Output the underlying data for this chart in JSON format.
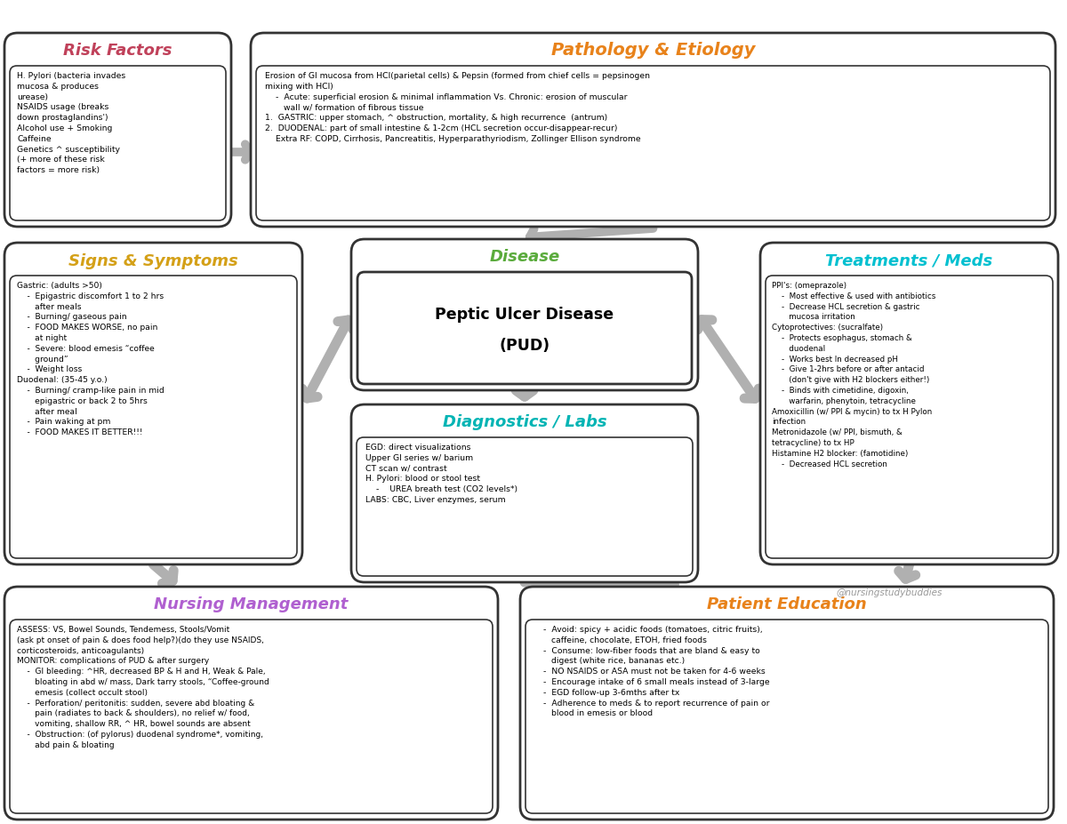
{
  "bg_color": "#ffffff",
  "title_colors": {
    "risk_factors": "#c0415a",
    "pathology": "#e8821a",
    "signs_symptoms": "#d4a017",
    "disease": "#5aab3c",
    "treatments": "#00c0d0",
    "diagnostics": "#00b4b4",
    "nursing": "#b060d0",
    "patient_ed": "#e8821a"
  },
  "risk_factors_title": "Risk Factors",
  "risk_factors_text": "H. Pylori (bacteria invades\nmucosa & produces\nurease)\nNSAIDS usage (breaks\ndown prostaglandins')\nAlcohol use + Smoking\nCaffeine\nGenetics ^ susceptibility\n(+ more of these risk\nfactors = more risk)",
  "pathology_title": "Pathology & Etiology",
  "pathology_text": "Erosion of GI mucosa from HCl(parietal cells) & Pepsin (formed from chief cells = pepsinogen\nmixing with HCl)\n    -  Acute: superficial erosion & minimal inflammation Vs. Chronic: erosion of muscular\n       wall w/ formation of fibrous tissue\n1.  GASTRIC: upper stomach, ^ obstruction, mortality, & high recurrence  (antrum)\n2.  DUODENAL: part of small intestine & 1-2cm (HCL secretion occur-disappear-recur)\n    Extra RF: COPD, Cirrhosis, Pancreatitis, Hyperparathyriodism, Zollinger Ellison syndrome",
  "signs_title": "Signs & Symptoms",
  "signs_text": "Gastric: (adults >50)\n    -  Epigastric discomfort 1 to 2 hrs\n       after meals\n    -  Burning/ gaseous pain\n    -  FOOD MAKES WORSE, no pain\n       at night\n    -  Severe: blood emesis “coffee\n       ground”\n    -  Weight loss\nDuodenal: (35-45 y.o.)\n    -  Burning/ cramp-like pain in mid\n       epigastric or back 2 to 5hrs\n       after meal\n    -  Pain waking at pm\n    -  FOOD MAKES IT BETTER!!!",
  "disease_title": "Disease",
  "disease_line1": "Peptic Ulcer Disease",
  "disease_line2": "(PUD)",
  "diagnostics_title": "Diagnostics / Labs",
  "diagnostics_text": "EGD: direct visualizations\nUpper GI series w/ barium\nCT scan w/ contrast\nH. Pylori: blood or stool test\n    -    UREA breath test (CO2 levels*)\nLABS: CBC, Liver enzymes, serum",
  "treatments_title": "Treatments / Meds",
  "treatments_text": "PPI's: (omeprazole)\n    -  Most effective & used with antibiotics\n    -  Decrease HCL secretion & gastric\n       mucosa irritation\nCytoprotectives: (sucralfate)\n    -  Protects esophagus, stomach &\n       duodenal\n    -  Works best In decreased pH\n    -  Give 1-2hrs before or after antacid\n       (don't give with H2 blockers either!)\n    -  Binds with cimetidine, digoxin,\n       warfarin, phenytoin, tetracycline\nAmoxicillin (w/ PPI & mycin) to tx H Pylon\ninfection\nMetronidazole (w/ PPI, bismuth, &\ntetracycline) to tx HP\nHistamine H2 blocker: (famotidine)\n    -  Decreased HCL secretion",
  "nursing_title": "Nursing Management",
  "nursing_text": "ASSESS: VS, Bowel Sounds, Tendemess, Stools/Vomit\n(ask pt onset of pain & does food help?)(do they use NSAIDS,\ncorticosteroids, anticoagulants)\nMONITOR: complications of PUD & after surgery\n    -  GI bleeding: ^HR, decreased BP & H and H, Weak & Pale,\n       bloating in abd w/ mass, Dark tarry stools, “Coffee-ground\n       emesis (collect occult stool)\n    -  Perforation/ peritonitis: sudden, severe abd bloating &\n       pain (radiates to back & shoulders), no relief w/ food,\n       vomiting, shallow RR, ^ HR, bowel sounds are absent\n    -  Obstruction: (of pylorus) duodenal syndrome*, vomiting,\n       abd pain & bloating",
  "patient_ed_title": "Patient Education",
  "patient_ed_text": "    -  Avoid: spicy + acidic foods (tomatoes, citric fruits),\n       caffeine, chocolate, ETOH, fried foods\n    -  Consume: low-fiber foods that are bland & easy to\n       digest (white rice, bananas etc.)\n    -  NO NSAIDS or ASA must not be taken for 4-6 weeks\n    -  Encourage intake of 6 small meals instead of 3-large\n    -  EGD follow-up 3-6mths after tx\n    -  Adherence to meds & to report recurrence of pain or\n       blood in emesis or blood",
  "watermark": "@nursingstudybuddies",
  "layout": {
    "rf": [
      0.05,
      6.72,
      2.55,
      2.18
    ],
    "pe": [
      2.82,
      6.72,
      9.05,
      2.18
    ],
    "ss": [
      0.05,
      2.92,
      3.35,
      3.62
    ],
    "dis": [
      3.95,
      4.88,
      3.9,
      1.7
    ],
    "tr": [
      8.55,
      2.92,
      3.35,
      3.62
    ],
    "dl": [
      3.95,
      2.72,
      3.9,
      2.0
    ],
    "nm": [
      0.05,
      0.05,
      5.55,
      2.62
    ],
    "ped": [
      5.85,
      0.05,
      6.0,
      2.62
    ]
  }
}
